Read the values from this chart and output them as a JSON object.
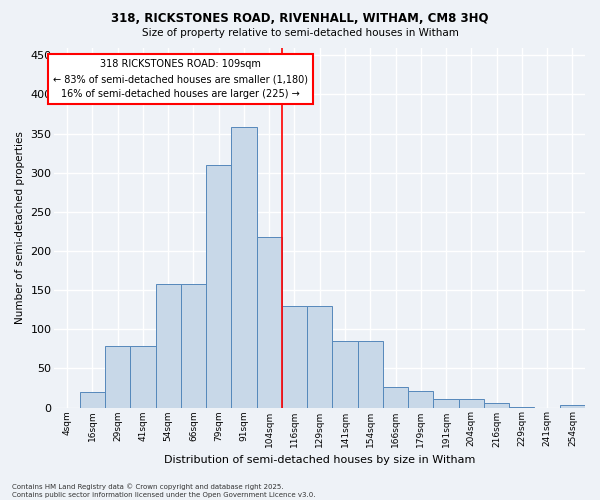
{
  "title1": "318, RICKSTONES ROAD, RIVENHALL, WITHAM, CM8 3HQ",
  "title2": "Size of property relative to semi-detached houses in Witham",
  "xlabel": "Distribution of semi-detached houses by size in Witham",
  "ylabel": "Number of semi-detached properties",
  "categories": [
    "4sqm",
    "16sqm",
    "29sqm",
    "41sqm",
    "54sqm",
    "66sqm",
    "79sqm",
    "91sqm",
    "104sqm",
    "116sqm",
    "129sqm",
    "141sqm",
    "154sqm",
    "166sqm",
    "179sqm",
    "191sqm",
    "204sqm",
    "216sqm",
    "229sqm",
    "241sqm",
    "254sqm"
  ],
  "values": [
    0,
    20,
    78,
    78,
    158,
    158,
    310,
    358,
    218,
    130,
    130,
    85,
    85,
    26,
    21,
    11,
    11,
    6,
    1,
    0,
    3
  ],
  "bar_color": "#c8d8e8",
  "bar_edge_color": "#5588bb",
  "background_color": "#eef2f7",
  "grid_color": "#ffffff",
  "annotation_title": "318 RICKSTONES ROAD: 109sqm",
  "annotation_line1": "← 83% of semi-detached houses are smaller (1,180)",
  "annotation_line2": "16% of semi-detached houses are larger (225) →",
  "vline_bin": 8,
  "ylim": [
    0,
    460
  ],
  "yticks": [
    0,
    50,
    100,
    150,
    200,
    250,
    300,
    350,
    400,
    450
  ],
  "footer1": "Contains HM Land Registry data © Crown copyright and database right 2025.",
  "footer2": "Contains public sector information licensed under the Open Government Licence v3.0."
}
